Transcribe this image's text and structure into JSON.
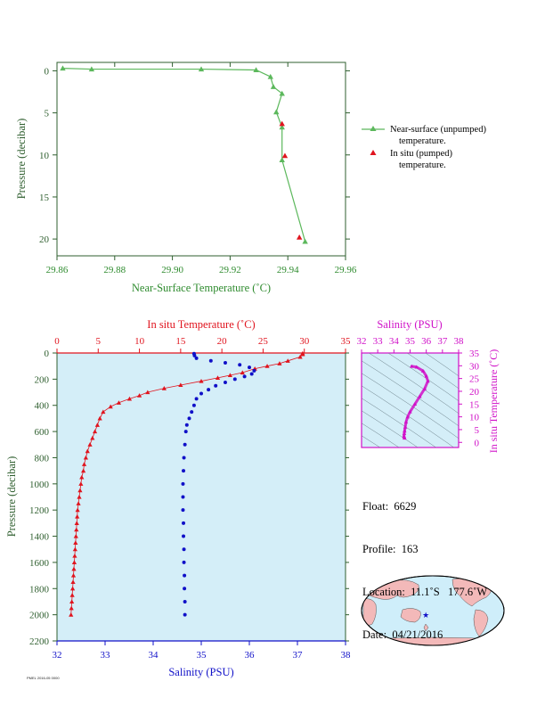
{
  "colors": {
    "top_green": "#5cb85c",
    "axis_green": "#2f5f2f",
    "label_green": "#2e8b2e",
    "temp_red": "#e0141e",
    "sal_blue": "#1010c8",
    "sal_magenta": "#d010c8",
    "panel_bg": "#d4eef8",
    "map_ocean": "#cfeefa",
    "map_land": "#f3b9b9"
  },
  "chart_data": [
    {
      "type": "line",
      "ylabel": "Pressure (decibar)",
      "xlabel": "Near-Surface Temperature (˚C)",
      "xlim": [
        29.86,
        29.96
      ],
      "ylim": [
        22,
        -1
      ],
      "x_ticks": [
        "29.86",
        "29.88",
        "29.90",
        "29.92",
        "29.94",
        "29.96"
      ],
      "y_ticks": [
        "0",
        "5",
        "10",
        "15",
        "20"
      ],
      "series": [
        {
          "name": "Near-surface (unpumped) temperature.",
          "marker": "triangle",
          "points": [
            [
              29.862,
              -0.3
            ],
            [
              29.872,
              -0.2
            ],
            [
              29.91,
              -0.2
            ],
            [
              29.929,
              -0.1
            ],
            [
              29.934,
              0.7
            ],
            [
              29.935,
              1.9
            ],
            [
              29.938,
              2.7
            ],
            [
              29.936,
              4.9
            ],
            [
              29.938,
              6.7
            ],
            [
              29.938,
              10.6
            ],
            [
              29.946,
              20.3
            ]
          ]
        },
        {
          "name": "In situ (pumped) temperature.",
          "marker": "triangle",
          "points": [
            [
              29.938,
              6.3
            ],
            [
              29.939,
              10.1
            ],
            [
              29.944,
              19.8
            ]
          ]
        }
      ],
      "legend_lines": [
        [
          "Near-surface (unpumped)",
          "temperature."
        ],
        [
          "In situ (pumped)",
          "temperature."
        ]
      ]
    },
    {
      "type": "line",
      "ylabel": "Pressure (decibar)",
      "top_xlabel": "In situ Temperature (˚C)",
      "bottom_xlabel": "Salinity (PSU)",
      "pressure_range": [
        0,
        2200
      ],
      "temperature_range": [
        0,
        35
      ],
      "salinity_range": [
        32,
        38
      ],
      "pressure_ticks": [
        "0",
        "200",
        "400",
        "600",
        "800",
        "1000",
        "1200",
        "1400",
        "1600",
        "1800",
        "2000",
        "2200"
      ],
      "temperature_ticks": [
        "0",
        "5",
        "10",
        "15",
        "20",
        "25",
        "30",
        "35"
      ],
      "salinity_ticks": [
        "32",
        "33",
        "34",
        "35",
        "36",
        "37",
        "38"
      ],
      "temperature_profile": [
        [
          29.8,
          2
        ],
        [
          29.8,
          10
        ],
        [
          29.5,
          30
        ],
        [
          28,
          60
        ],
        [
          27,
          80
        ],
        [
          25.5,
          100
        ],
        [
          24,
          120
        ],
        [
          22.5,
          150
        ],
        [
          21,
          170
        ],
        [
          19.5,
          190
        ],
        [
          17.5,
          215
        ],
        [
          15,
          245
        ],
        [
          13,
          270
        ],
        [
          11,
          300
        ],
        [
          10,
          325
        ],
        [
          8.8,
          350
        ],
        [
          7.5,
          380
        ],
        [
          6.5,
          410
        ],
        [
          5.6,
          450
        ],
        [
          5.2,
          500
        ],
        [
          4.9,
          550
        ],
        [
          4.6,
          600
        ],
        [
          4.3,
          650
        ],
        [
          4,
          700
        ],
        [
          3.7,
          750
        ],
        [
          3.5,
          800
        ],
        [
          3.3,
          850
        ],
        [
          3.2,
          900
        ],
        [
          3,
          950
        ],
        [
          2.9,
          1000
        ],
        [
          2.8,
          1050
        ],
        [
          2.7,
          1100
        ],
        [
          2.6,
          1150
        ],
        [
          2.5,
          1200
        ],
        [
          2.45,
          1250
        ],
        [
          2.4,
          1300
        ],
        [
          2.35,
          1350
        ],
        [
          2.3,
          1400
        ],
        [
          2.25,
          1450
        ],
        [
          2.2,
          1500
        ],
        [
          2.15,
          1550
        ],
        [
          2.1,
          1600
        ],
        [
          2.05,
          1650
        ],
        [
          2.0,
          1700
        ],
        [
          1.95,
          1750
        ],
        [
          1.9,
          1800
        ],
        [
          1.85,
          1850
        ],
        [
          1.8,
          1900
        ],
        [
          1.75,
          1950
        ],
        [
          1.7,
          2000
        ]
      ],
      "salinity_profile": [
        [
          34.85,
          5
        ],
        [
          34.86,
          20
        ],
        [
          34.9,
          40
        ],
        [
          35.2,
          60
        ],
        [
          35.5,
          75
        ],
        [
          35.8,
          90
        ],
        [
          36.0,
          110
        ],
        [
          36.1,
          135
        ],
        [
          36.05,
          160
        ],
        [
          35.9,
          180
        ],
        [
          35.7,
          200
        ],
        [
          35.5,
          225
        ],
        [
          35.3,
          250
        ],
        [
          35.15,
          280
        ],
        [
          35.0,
          310
        ],
        [
          34.9,
          350
        ],
        [
          34.85,
          400
        ],
        [
          34.8,
          450
        ],
        [
          34.75,
          500
        ],
        [
          34.7,
          550
        ],
        [
          34.68,
          600
        ],
        [
          34.66,
          700
        ],
        [
          34.64,
          800
        ],
        [
          34.63,
          900
        ],
        [
          34.62,
          1000
        ],
        [
          34.62,
          1100
        ],
        [
          34.62,
          1200
        ],
        [
          34.63,
          1300
        ],
        [
          34.63,
          1400
        ],
        [
          34.64,
          1500
        ],
        [
          34.64,
          1600
        ],
        [
          34.65,
          1700
        ],
        [
          34.65,
          1800
        ],
        [
          34.66,
          1900
        ],
        [
          34.66,
          2000
        ]
      ]
    },
    {
      "type": "scatter",
      "title": "Salinity (PSU)",
      "ylabel": "In situ Temperature (˚C)",
      "xlim": [
        32,
        38
      ],
      "ylim": [
        -2,
        35
      ],
      "x_ticks": [
        "32",
        "33",
        "34",
        "35",
        "36",
        "37",
        "38"
      ],
      "y_ticks": [
        "0",
        "5",
        "10",
        "15",
        "20",
        "25",
        "30",
        "35"
      ],
      "points": [
        [
          35.1,
          29.8
        ],
        [
          35.4,
          29.5
        ],
        [
          35.8,
          28
        ],
        [
          36.0,
          26
        ],
        [
          36.1,
          24
        ],
        [
          35.9,
          21
        ],
        [
          35.6,
          18
        ],
        [
          35.3,
          15
        ],
        [
          35.0,
          12
        ],
        [
          34.85,
          10
        ],
        [
          34.75,
          8
        ],
        [
          34.7,
          6
        ],
        [
          34.66,
          4.5
        ],
        [
          34.64,
          3.5
        ],
        [
          34.62,
          2.5
        ],
        [
          34.64,
          2.0
        ],
        [
          34.66,
          1.7
        ]
      ]
    }
  ],
  "float_info": {
    "float": "Float:  6629",
    "profile": "Profile:  163",
    "location": "Location:  11.1˚S   177.6˚W",
    "date": "Date:  04/21/2016"
  },
  "map": {
    "marker_icon": "star-icon",
    "marker_lon": -177.6,
    "marker_lat": -11.1
  },
  "footer_text": "PMEL 2016-05 0000"
}
